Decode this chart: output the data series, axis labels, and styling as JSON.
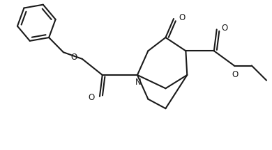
{
  "bg_color": "#ffffff",
  "line_color": "#1a1a1a",
  "linewidth": 1.5,
  "figsize": [
    3.9,
    2.16
  ],
  "dpi": 100,
  "xlim": [
    0,
    10
  ],
  "ylim": [
    0,
    5.6
  ]
}
